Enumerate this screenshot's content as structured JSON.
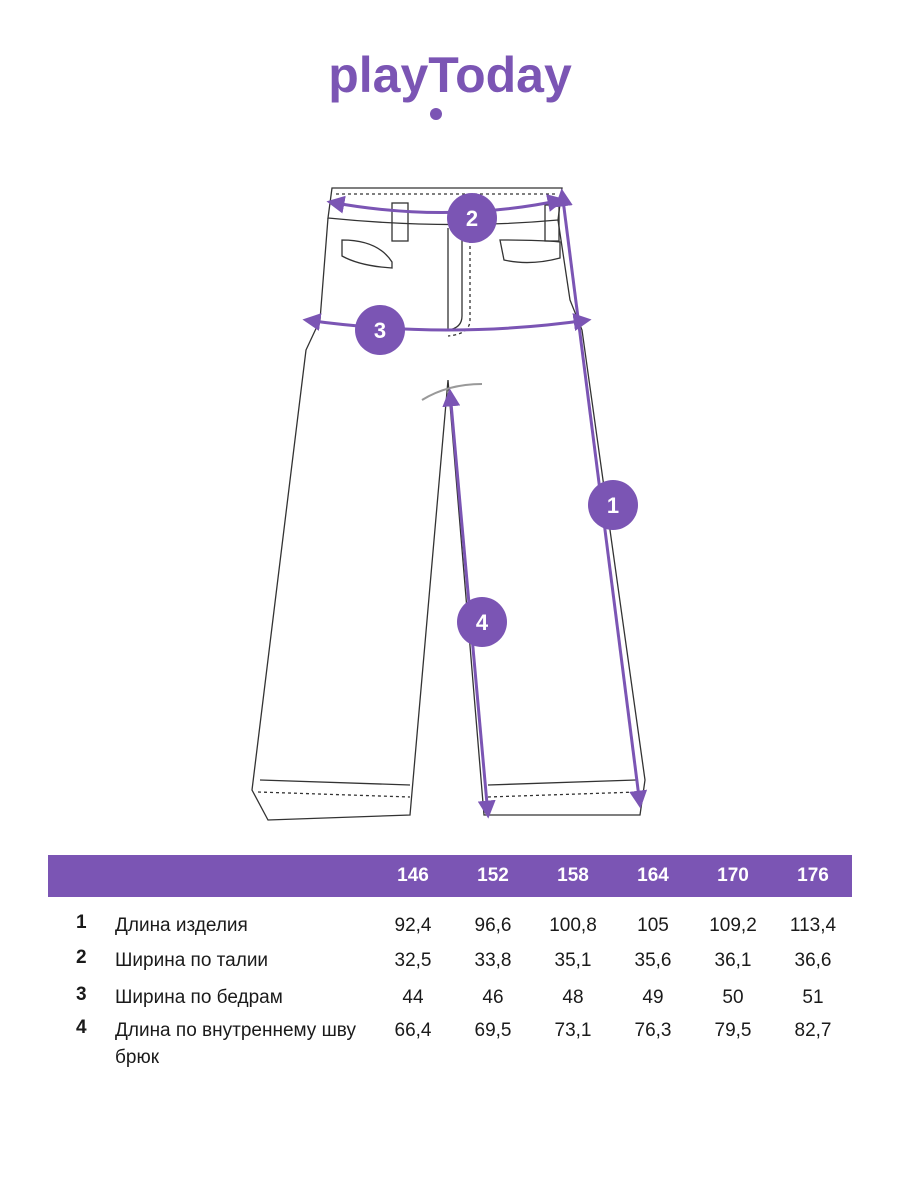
{
  "brand": {
    "logo_text": "playToday",
    "color": "#7b55b4"
  },
  "diagram": {
    "markers": [
      "1",
      "2",
      "3",
      "4"
    ]
  },
  "table": {
    "sizes": [
      "146",
      "152",
      "158",
      "164",
      "170",
      "176"
    ],
    "rows": [
      {
        "num": "1",
        "label": "Длина изделия",
        "values": [
          "92,4",
          "96,6",
          "100,8",
          "105",
          "109,2",
          "113,4"
        ]
      },
      {
        "num": "2",
        "label": "Ширина по талии",
        "values": [
          "32,5",
          "33,8",
          "35,1",
          "35,6",
          "36,1",
          "36,6"
        ]
      },
      {
        "num": "3",
        "label": "Ширина по бедрам",
        "values": [
          "44",
          "46",
          "48",
          "49",
          "50",
          "51"
        ]
      },
      {
        "num": "4",
        "label": "Длина по внутреннему шву брюк",
        "values": [
          "66,4",
          "69,5",
          "73,1",
          "76,3",
          "79,5",
          "82,7"
        ]
      }
    ]
  }
}
